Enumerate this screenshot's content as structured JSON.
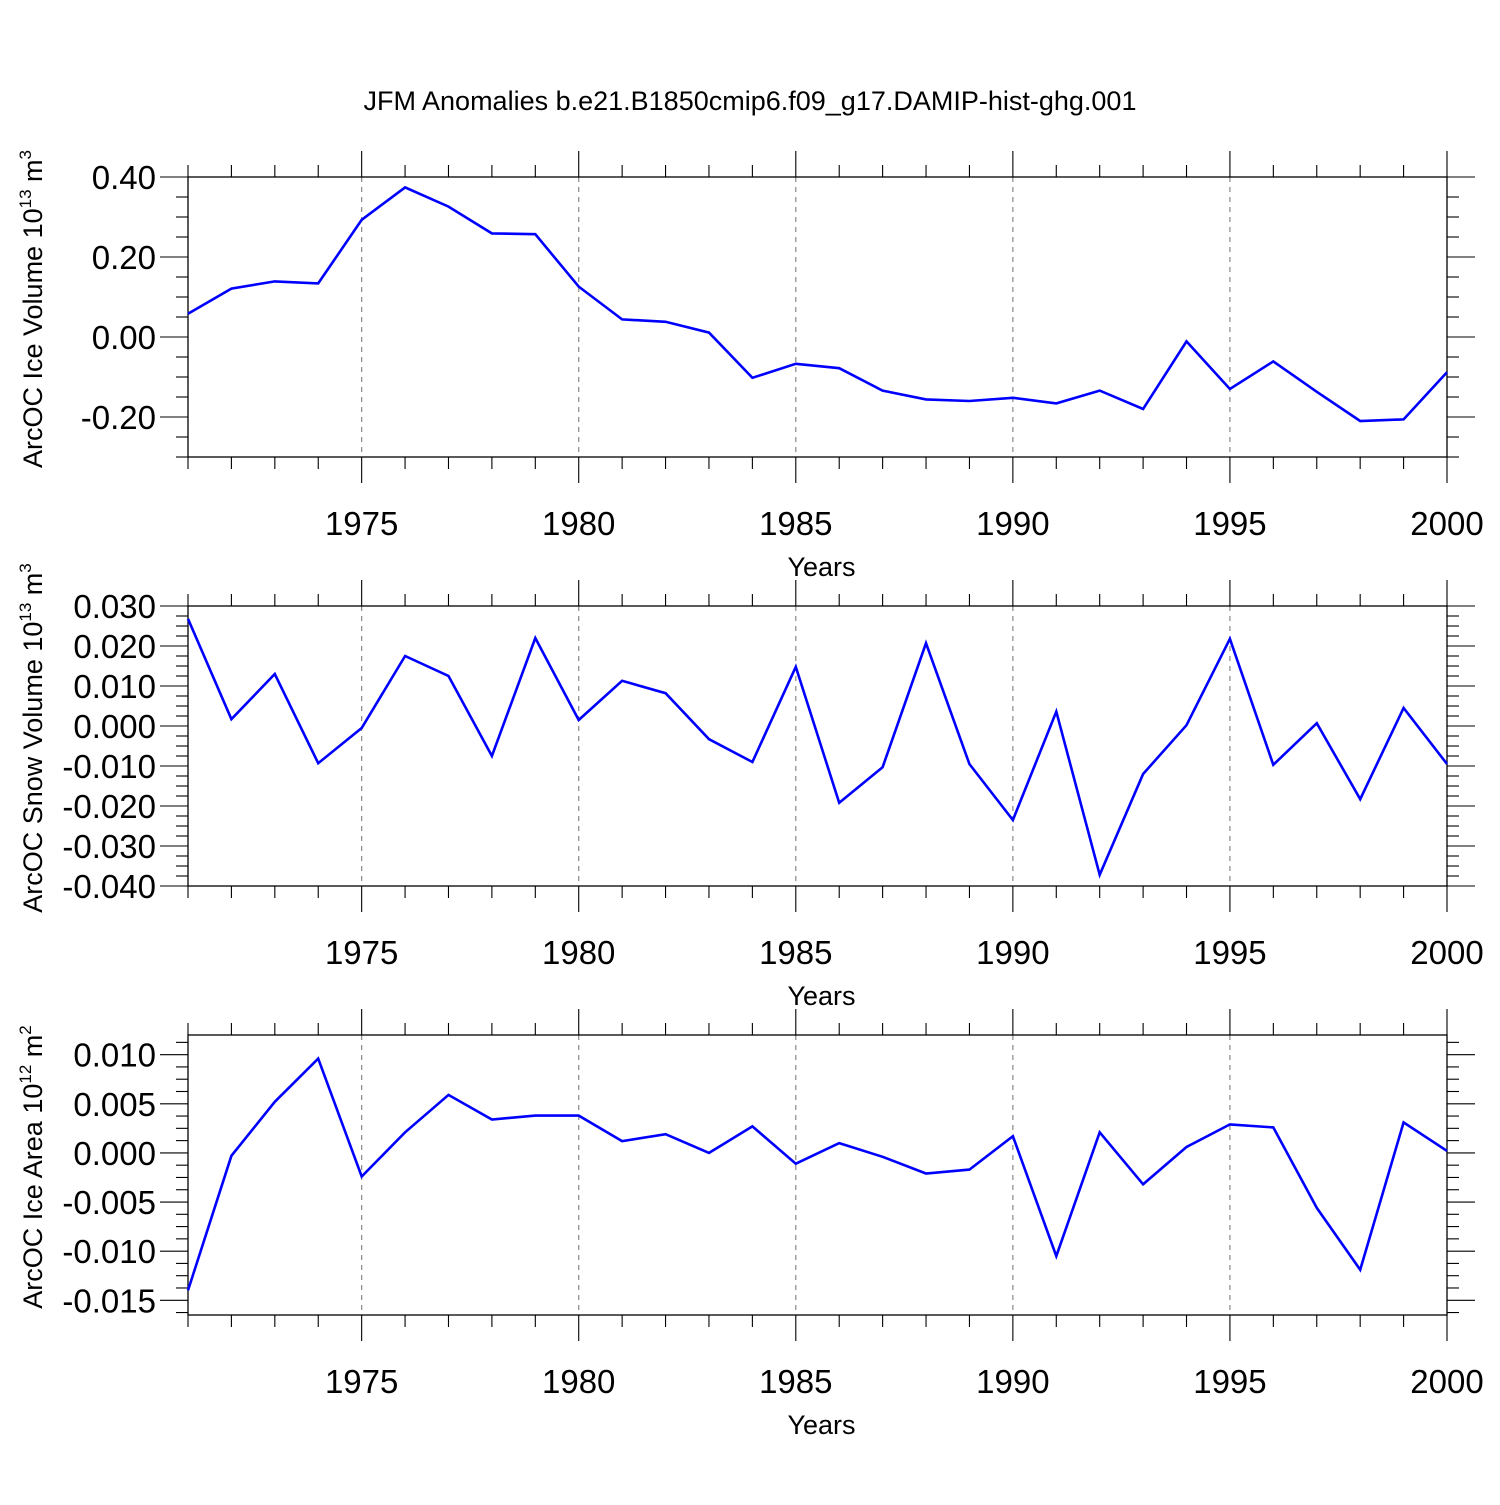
{
  "figure": {
    "title": "JFM Anomalies b.e21.B1850cmip6.f09_g17.DAMIP-hist-ghg.001",
    "line_color": "#0000ff",
    "grid_color": "#888888"
  },
  "chart_data": [
    {
      "type": "line",
      "title": "",
      "ylabel": "ArcOC Ice Volume 10",
      "ylabel_exp1": "13",
      "ylabel_unit": " m",
      "ylabel_exp2": "3",
      "xlabel": "Years",
      "xlim": [
        1971,
        2000
      ],
      "ylim": [
        -0.3,
        0.4
      ],
      "y_ticks": [
        -0.2,
        0.0,
        0.2,
        0.4
      ],
      "y_tick_labels": [
        "-0.20",
        "0.00",
        "0.20",
        "0.40"
      ],
      "x_ticks": [
        1975,
        1980,
        1985,
        1990,
        1995,
        2000
      ],
      "x_tick_labels": [
        "1975",
        "1980",
        "1985",
        "1990",
        "1995",
        "2000"
      ],
      "grid": "vertical dashed at major x ticks",
      "x": [
        1971,
        1972,
        1973,
        1974,
        1975,
        1976,
        1977,
        1978,
        1979,
        1980,
        1981,
        1982,
        1983,
        1984,
        1985,
        1986,
        1987,
        1988,
        1989,
        1990,
        1991,
        1992,
        1993,
        1994,
        1995,
        1996,
        1997,
        1998,
        1999,
        2000
      ],
      "values": [
        0.058,
        0.121,
        0.139,
        0.134,
        0.293,
        0.374,
        0.326,
        0.259,
        0.257,
        0.126,
        0.044,
        0.038,
        0.011,
        -0.102,
        -0.067,
        -0.078,
        -0.134,
        -0.156,
        -0.16,
        -0.152,
        -0.166,
        -0.134,
        -0.18,
        -0.011,
        -0.13,
        -0.061,
        -0.137,
        -0.21,
        -0.206,
        -0.088
      ]
    },
    {
      "type": "line",
      "title": "",
      "ylabel": "ArcOC Snow Volume 10",
      "ylabel_exp1": "13",
      "ylabel_unit": " m",
      "ylabel_exp2": "3",
      "xlabel": "Years",
      "xlim": [
        1971,
        2000
      ],
      "ylim": [
        -0.04,
        0.03
      ],
      "y_ticks": [
        -0.04,
        -0.03,
        -0.02,
        -0.01,
        0.0,
        0.01,
        0.02,
        0.03
      ],
      "y_tick_labels": [
        "-0.040",
        "-0.030",
        "-0.020",
        "-0.010",
        "0.000",
        "0.010",
        "0.020",
        "0.030"
      ],
      "x_ticks": [
        1975,
        1980,
        1985,
        1990,
        1995,
        2000
      ],
      "x_tick_labels": [
        "1975",
        "1980",
        "1985",
        "1990",
        "1995",
        "2000"
      ],
      "grid": "vertical dashed at major x ticks",
      "x": [
        1971,
        1972,
        1973,
        1974,
        1975,
        1976,
        1977,
        1978,
        1979,
        1980,
        1981,
        1982,
        1983,
        1984,
        1985,
        1986,
        1987,
        1988,
        1989,
        1990,
        1991,
        1992,
        1993,
        1994,
        1995,
        1996,
        1997,
        1998,
        1999,
        2000
      ],
      "values": [
        0.0268,
        0.0017,
        0.013,
        -0.0093,
        -0.0005,
        0.0175,
        0.0125,
        -0.0075,
        0.022,
        0.0015,
        0.0113,
        0.0082,
        -0.0033,
        -0.009,
        0.0148,
        -0.0192,
        -0.0103,
        0.0207,
        -0.0095,
        -0.0235,
        0.0036,
        -0.0372,
        -0.012,
        0.0002,
        0.0218,
        -0.0097,
        0.0007,
        -0.0183,
        0.0045,
        -0.0095
      ]
    },
    {
      "type": "line",
      "title": "",
      "ylabel": "ArcOC Ice Area 10",
      "ylabel_exp1": "12",
      "ylabel_unit": " m",
      "ylabel_exp2": "2",
      "xlabel": "Years",
      "xlim": [
        1971,
        2000
      ],
      "ylim": [
        -0.0165,
        0.012
      ],
      "y_ticks": [
        -0.015,
        -0.01,
        -0.005,
        0.0,
        0.005,
        0.01
      ],
      "y_tick_labels": [
        "-0.015",
        "-0.010",
        "-0.005",
        "0.000",
        "0.005",
        "0.010"
      ],
      "x_ticks": [
        1975,
        1980,
        1985,
        1990,
        1995,
        2000
      ],
      "x_tick_labels": [
        "1975",
        "1980",
        "1985",
        "1990",
        "1995",
        "2000"
      ],
      "grid": "vertical dashed at major x ticks",
      "x": [
        1971,
        1972,
        1973,
        1974,
        1975,
        1976,
        1977,
        1978,
        1979,
        1980,
        1981,
        1982,
        1983,
        1984,
        1985,
        1986,
        1987,
        1988,
        1989,
        1990,
        1991,
        1992,
        1993,
        1994,
        1995,
        1996,
        1997,
        1998,
        1999,
        2000
      ],
      "values": [
        -0.014,
        -0.0003,
        0.0052,
        0.0096,
        -0.0024,
        0.0021,
        0.0059,
        0.0034,
        0.0038,
        0.0038,
        0.0012,
        0.0019,
        0.0,
        0.0027,
        -0.0011,
        0.001,
        -0.0004,
        -0.0021,
        -0.0017,
        0.0017,
        -0.0105,
        0.0021,
        -0.0032,
        0.0006,
        0.0029,
        0.0026,
        -0.0056,
        -0.0119,
        0.0031,
        0.0002
      ]
    }
  ]
}
